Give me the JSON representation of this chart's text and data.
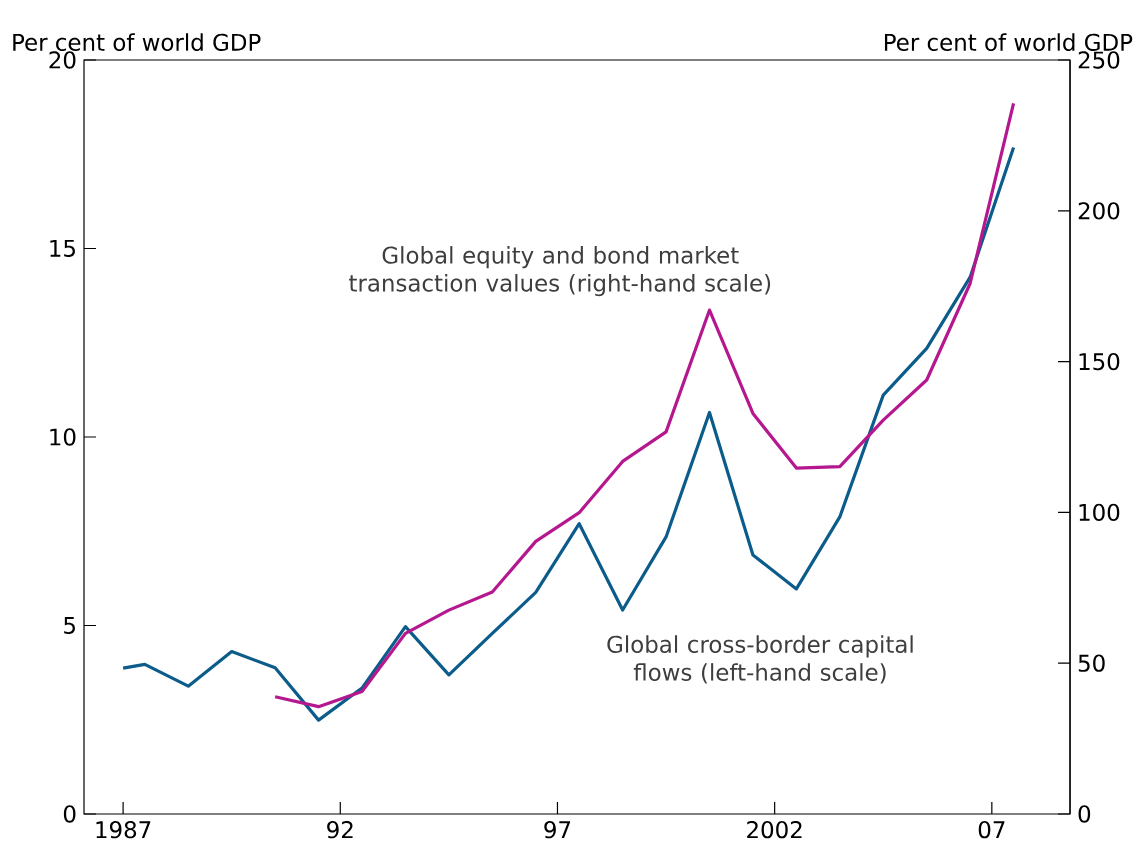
{
  "chart_data": {
    "type": "line",
    "ylabel": "Per cent of world GDP",
    "y2label": "Per cent of world GDP",
    "xlim": [
      1986.1,
      2008.8
    ],
    "xticks": [
      {
        "value": 1987,
        "label": "1987"
      },
      {
        "value": 1992,
        "label": "92"
      },
      {
        "value": 1997,
        "label": "97"
      },
      {
        "value": 2002,
        "label": "2002"
      },
      {
        "value": 2007,
        "label": "07"
      }
    ],
    "ylim": [
      0,
      20
    ],
    "yticks": [
      0,
      5,
      10,
      15,
      20
    ],
    "y2lim": [
      0,
      250
    ],
    "y2ticks": [
      0,
      50,
      100,
      150,
      200,
      250
    ],
    "marker": "none",
    "legend": false,
    "grid": false,
    "series": [
      {
        "name": "Global cross-border capital flows (left-hand scale)",
        "color": "#0b5c8a",
        "axis": "y",
        "x": [
          1987,
          1987.5,
          1988.5,
          1989.5,
          1990.5,
          1991.5,
          1992.5,
          1993.5,
          1994.5,
          1995.5,
          1996.5,
          1997.5,
          1998.5,
          1999.5,
          2000.5,
          2001.5,
          2002.5,
          2003.5,
          2004.5,
          2005.5,
          2006.5,
          2007.5
        ],
        "values": [
          3.87,
          3.97,
          3.39,
          4.31,
          3.88,
          2.49,
          3.34,
          4.97,
          3.69,
          4.79,
          5.88,
          7.7,
          5.41,
          7.35,
          10.65,
          6.87,
          5.97,
          7.88,
          11.11,
          12.35,
          14.24,
          17.68
        ]
      },
      {
        "name": "Global equity and bond market transaction values (right-hand scale)",
        "color": "#b5178f",
        "axis": "y2",
        "x": [
          1990.5,
          1991.5,
          1992.5,
          1993.5,
          1994.5,
          1995.5,
          1996.5,
          1997.5,
          1998.5,
          1999.5,
          2000.5,
          2001.5,
          2002.5,
          2003.5,
          2004.5,
          2005.5,
          2006.5,
          2007.5
        ],
        "values": [
          38.9,
          35.6,
          40.6,
          59.9,
          67.6,
          73.6,
          90.4,
          99.9,
          116.9,
          126.7,
          167.1,
          132.8,
          114.7,
          115.2,
          130.6,
          143.9,
          175.9,
          235.6
        ]
      }
    ]
  }
}
